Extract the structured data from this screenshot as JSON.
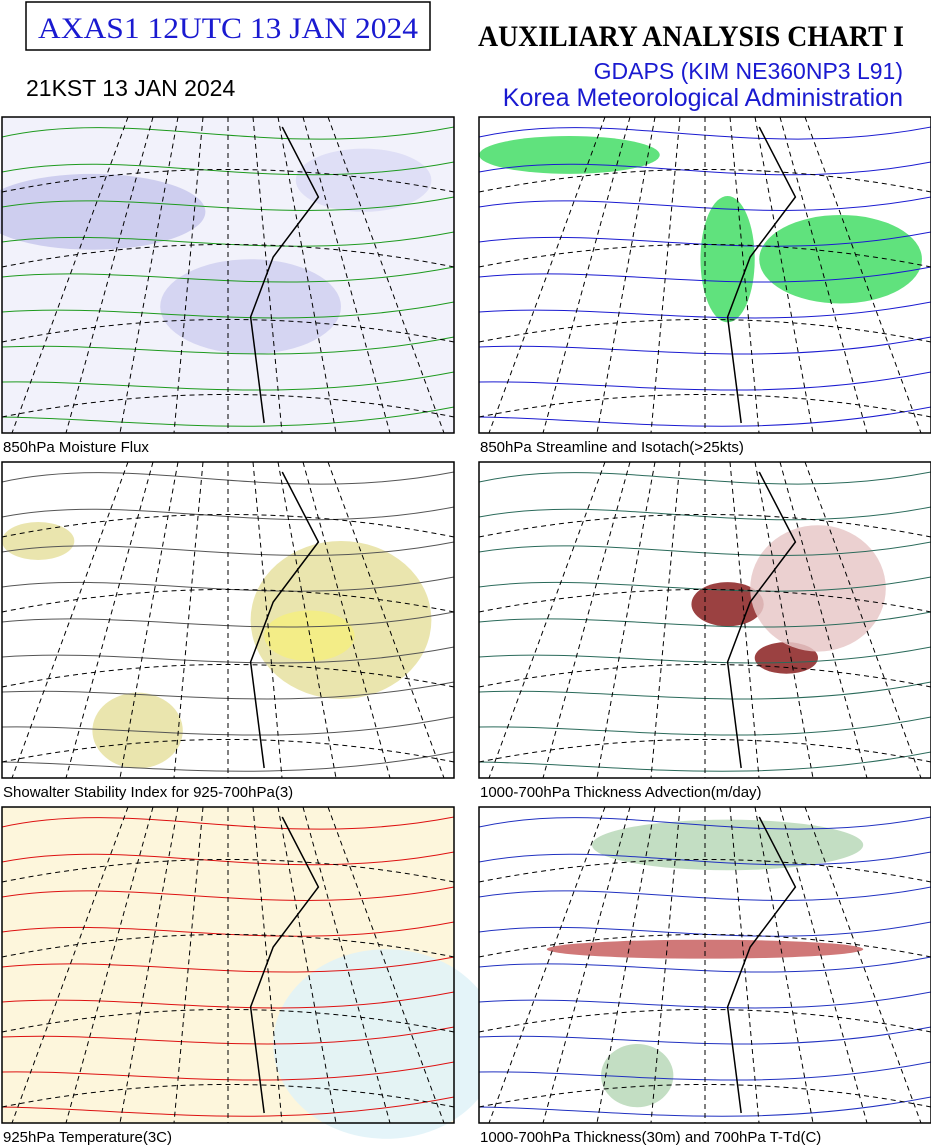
{
  "header": {
    "box_title": "AXAS1  12UTC 13 JAN 2024",
    "title": "AUXILIARY ANALYSIS CHART  I",
    "model": "GDAPS (KIM NE360NP3 L91)",
    "agency": "Korea Meteorological Administration",
    "local_time": "21KST 13 JAN 2024"
  },
  "panels": [
    {
      "caption": "850hPa Moisture Flux"
    },
    {
      "caption": "850hPa Streamline and Isotach(>25kts)"
    },
    {
      "caption": "Showalter Stability Index for 925-700hPa(3)"
    },
    {
      "caption": "1000-700hPa Thickness Advection(m/day)"
    },
    {
      "caption": "925hPa Temperature(3C)"
    },
    {
      "caption": "1000-700hPa Thickness(30m) and 700hPa T-Td(C)"
    }
  ]
}
